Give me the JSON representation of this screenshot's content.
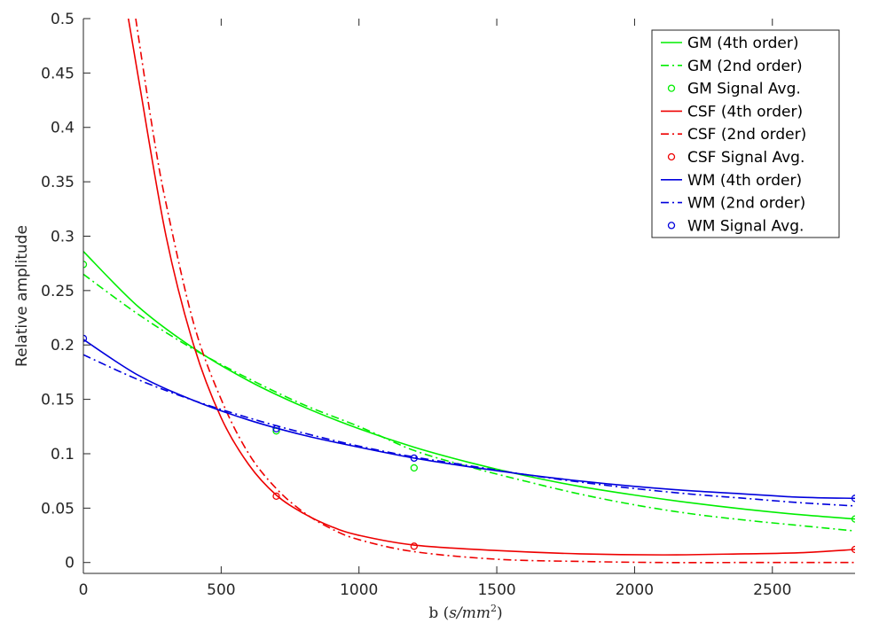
{
  "chart_data": {
    "type": "line",
    "title": "",
    "xlabel": "b",
    "xlabel_unit": "s/mm",
    "xlabel_unit_exponent": "2",
    "ylabel": "Relative amplitude",
    "xlim": [
      0,
      2800
    ],
    "ylim": [
      -0.01,
      0.5
    ],
    "xticks": [
      0,
      500,
      1000,
      1500,
      2000,
      2500
    ],
    "xtick_labels": [
      "0",
      "500",
      "1000",
      "1500",
      "2000",
      "2500"
    ],
    "yticks": [
      0,
      0.05,
      0.1,
      0.15,
      0.2,
      0.25,
      0.3,
      0.35,
      0.4,
      0.45,
      0.5
    ],
    "ytick_labels": [
      "0",
      "0.05",
      "0.1",
      "0.15",
      "0.2",
      "0.25",
      "0.3",
      "0.35",
      "0.4",
      "0.45",
      "0.5"
    ],
    "grid": false,
    "legend_position": "top-right",
    "series": [
      {
        "name": "GM (4th order)",
        "style": "solid",
        "color": "#00ee00",
        "x": [
          0,
          200,
          400,
          600,
          800,
          1000,
          1200,
          1400,
          1600,
          1800,
          2000,
          2200,
          2400,
          2600,
          2800
        ],
        "y": [
          0.286,
          0.235,
          0.197,
          0.167,
          0.143,
          0.123,
          0.106,
          0.092,
          0.08,
          0.07,
          0.062,
          0.055,
          0.049,
          0.044,
          0.04
        ]
      },
      {
        "name": "GM (2nd order)",
        "style": "dashdot",
        "color": "#00ee00",
        "x": [
          0,
          200,
          400,
          600,
          800,
          1000,
          1200,
          1400,
          1600,
          1800,
          2000,
          2200,
          2400,
          2600,
          2800
        ],
        "y": [
          0.265,
          0.228,
          0.196,
          0.169,
          0.145,
          0.125,
          0.103,
          0.088,
          0.075,
          0.063,
          0.053,
          0.045,
          0.039,
          0.034,
          0.029
        ]
      },
      {
        "name": "GM Signal Avg.",
        "style": "markers",
        "color": "#00ee00",
        "x": [
          0,
          700,
          1200,
          2800
        ],
        "y": [
          0.274,
          0.121,
          0.087,
          0.04
        ]
      },
      {
        "name": "CSF (4th order)",
        "style": "solid",
        "color": "#ee0000",
        "x": [
          160,
          200,
          300,
          400,
          500,
          600,
          700,
          800,
          900,
          1000,
          1200,
          1500,
          1800,
          2100,
          2400,
          2600,
          2800
        ],
        "y": [
          0.505,
          0.445,
          0.3,
          0.2,
          0.133,
          0.09,
          0.062,
          0.045,
          0.033,
          0.025,
          0.016,
          0.011,
          0.008,
          0.007,
          0.008,
          0.009,
          0.012
        ]
      },
      {
        "name": "CSF (2nd order)",
        "style": "dashdot",
        "color": "#ee0000",
        "x": [
          190,
          250,
          300,
          400,
          500,
          600,
          700,
          800,
          900,
          1000,
          1200,
          1500,
          1800,
          2100,
          2400,
          2800
        ],
        "y": [
          0.5,
          0.4,
          0.33,
          0.22,
          0.15,
          0.1,
          0.068,
          0.046,
          0.031,
          0.021,
          0.01,
          0.003,
          0.001,
          0.0,
          0.0,
          0.0
        ]
      },
      {
        "name": "CSF Signal Avg.",
        "style": "markers",
        "color": "#ee0000",
        "x": [
          700,
          1200,
          2800
        ],
        "y": [
          0.061,
          0.015,
          0.012
        ]
      },
      {
        "name": "WM (4th order)",
        "style": "solid",
        "color": "#0000dd",
        "x": [
          0,
          200,
          400,
          600,
          800,
          1000,
          1200,
          1400,
          1600,
          1800,
          2000,
          2200,
          2400,
          2600,
          2800
        ],
        "y": [
          0.205,
          0.172,
          0.149,
          0.131,
          0.117,
          0.106,
          0.096,
          0.088,
          0.081,
          0.075,
          0.07,
          0.066,
          0.063,
          0.06,
          0.059
        ]
      },
      {
        "name": "WM (2nd order)",
        "style": "dashdot",
        "color": "#0000dd",
        "x": [
          0,
          200,
          400,
          600,
          800,
          1000,
          1200,
          1400,
          1600,
          1800,
          2000,
          2200,
          2400,
          2600,
          2800
        ],
        "y": [
          0.191,
          0.168,
          0.149,
          0.133,
          0.119,
          0.107,
          0.097,
          0.089,
          0.081,
          0.074,
          0.068,
          0.063,
          0.059,
          0.055,
          0.052
        ]
      },
      {
        "name": "WM Signal Avg.",
        "style": "markers",
        "color": "#0000dd",
        "x": [
          0,
          700,
          1200,
          2800
        ],
        "y": [
          0.206,
          0.123,
          0.096,
          0.059
        ]
      }
    ]
  }
}
